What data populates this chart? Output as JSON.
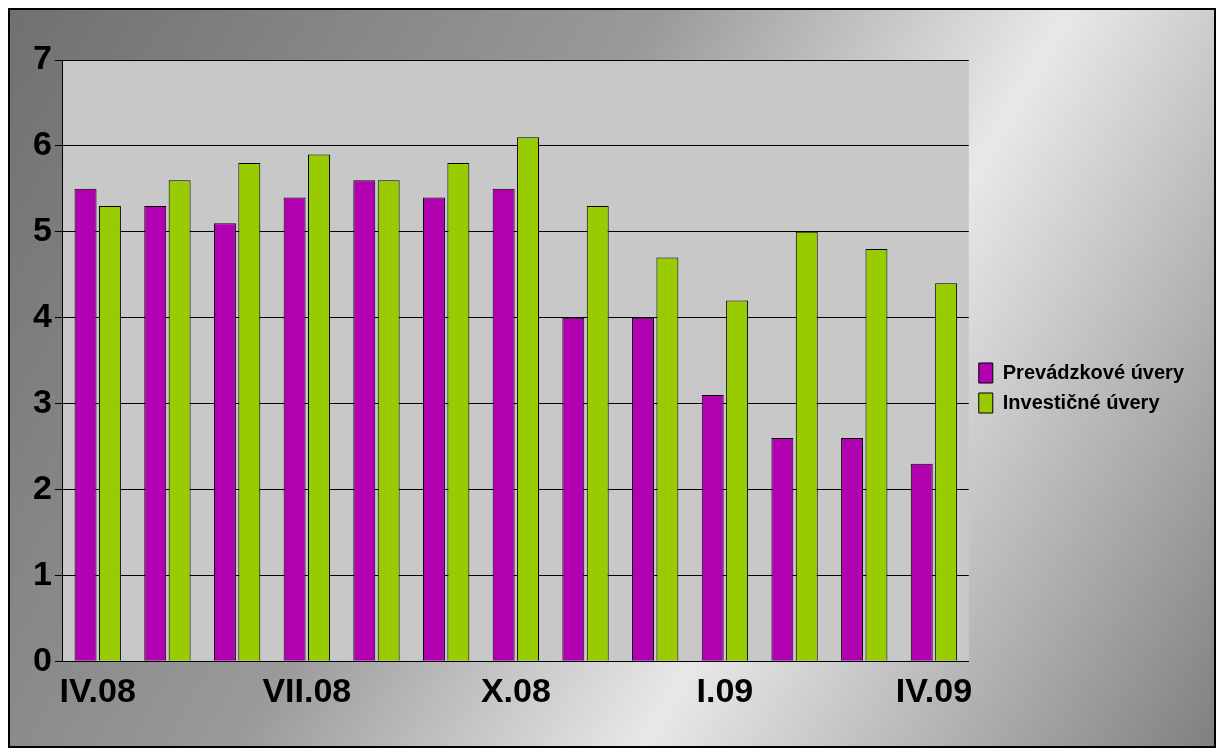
{
  "chart_data": {
    "type": "bar",
    "categories": [
      "IV.08",
      null,
      null,
      "VII.08",
      null,
      null,
      "X.08",
      null,
      null,
      "I.09",
      null,
      null,
      "IV.09"
    ],
    "series": [
      {
        "name": "Prevádzkové úvery",
        "color": "#b000b0",
        "values": [
          5.5,
          5.3,
          5.1,
          5.4,
          5.6,
          5.4,
          5.5,
          4.0,
          4.0,
          3.1,
          2.6,
          2.6,
          2.3
        ]
      },
      {
        "name": "Investičné úvery",
        "color": "#99cc00",
        "values": [
          5.3,
          5.6,
          5.8,
          5.9,
          5.6,
          5.8,
          6.1,
          5.3,
          4.7,
          4.2,
          5.0,
          4.8,
          4.4
        ]
      }
    ],
    "ylim": [
      0,
      7
    ],
    "yticks": [
      0,
      1,
      2,
      3,
      4,
      5,
      6,
      7
    ],
    "grid": "y",
    "legend": "right"
  }
}
